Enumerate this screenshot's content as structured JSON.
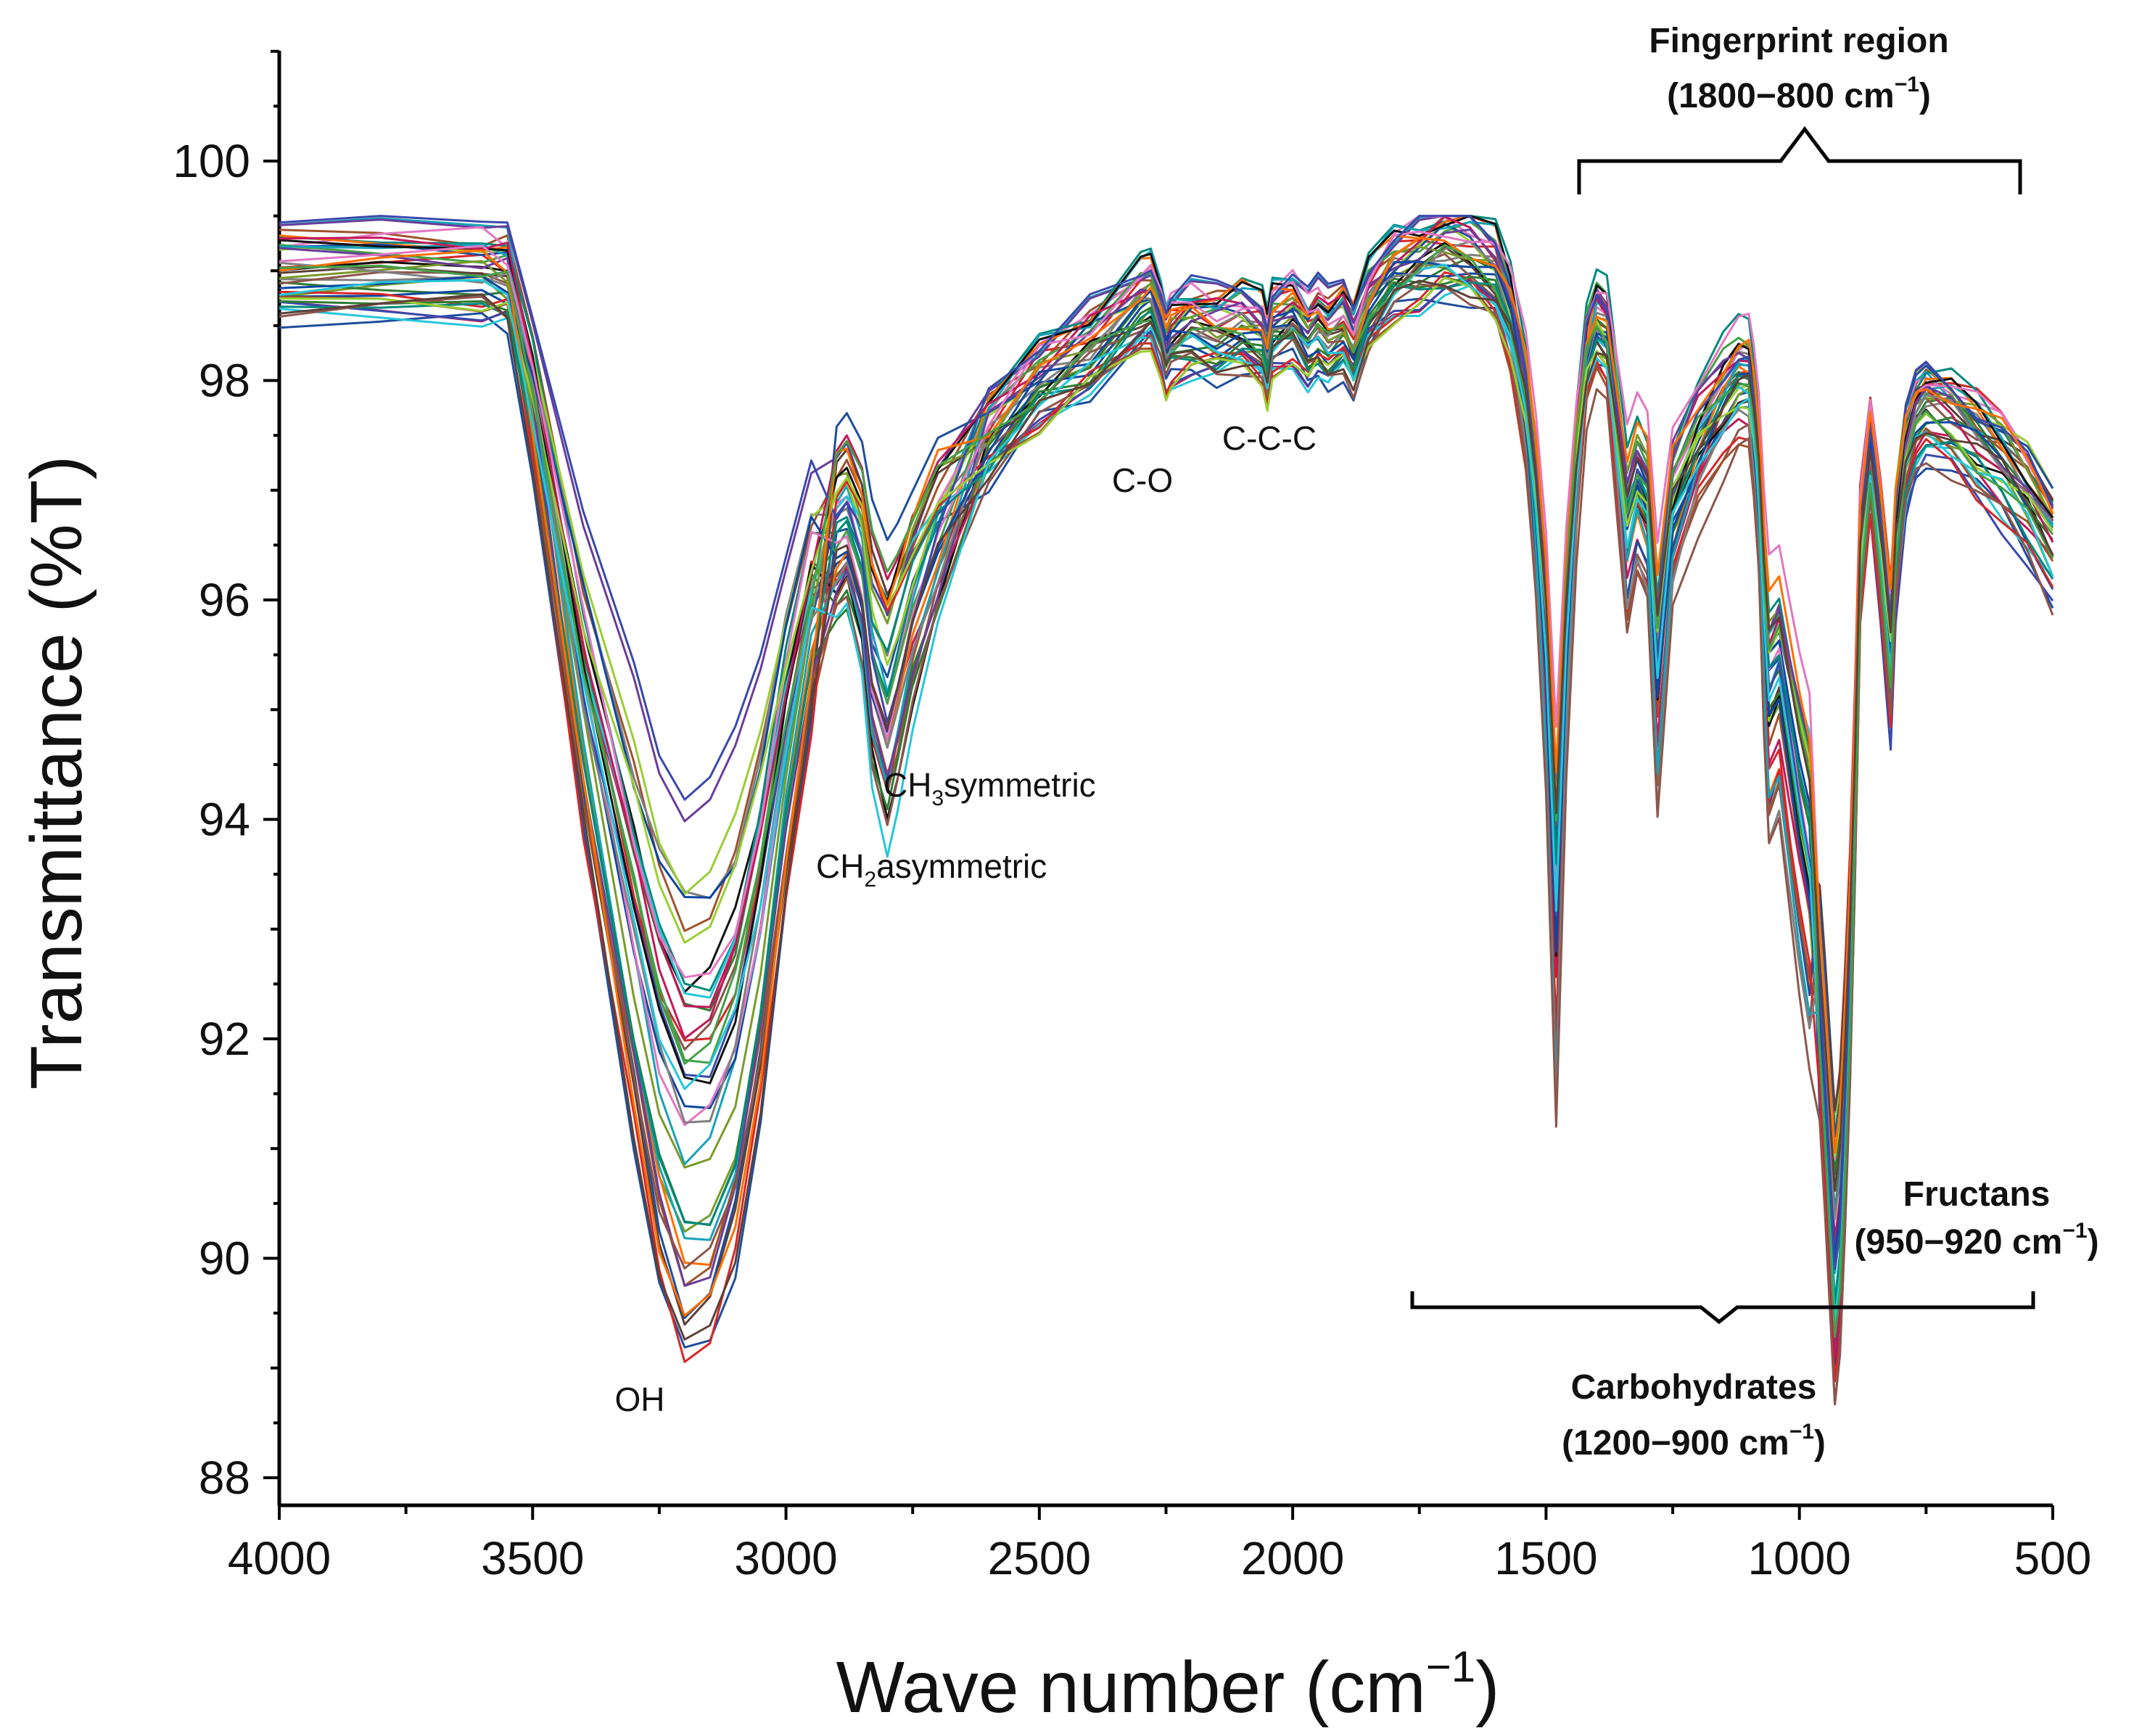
{
  "chart_data": {
    "type": "line",
    "title": "",
    "xlabel": "Wave number (cm",
    "xlabel_sup": "−1",
    "xlabel_end": ")",
    "ylabel": "Transmittance (%T)",
    "xlim": [
      4000,
      500
    ],
    "ylim": [
      88,
      101
    ],
    "x_ticks": [
      "4000",
      "3500",
      "3000",
      "2500",
      "2000",
      "1500",
      "1000",
      "500"
    ],
    "y_ticks": [
      "88",
      "90",
      "92",
      "94",
      "96",
      "98",
      "100"
    ],
    "base_spectrum": {
      "x": [
        4000,
        3800,
        3600,
        3550,
        3500,
        3400,
        3300,
        3250,
        3200,
        3150,
        3100,
        3050,
        3000,
        2950,
        2900,
        2880,
        2850,
        2830,
        2800,
        2780,
        2750,
        2700,
        2600,
        2500,
        2400,
        2300,
        2280,
        2260,
        2250,
        2240,
        2200,
        2150,
        2100,
        2060,
        2050,
        2040,
        2000,
        1970,
        1950,
        1930,
        1900,
        1880,
        1850,
        1800,
        1750,
        1700,
        1650,
        1600,
        1570,
        1540,
        1520,
        1500,
        1480,
        1460,
        1440,
        1420,
        1400,
        1380,
        1360,
        1340,
        1320,
        1300,
        1280,
        1250,
        1200,
        1150,
        1120,
        1100,
        1090,
        1080,
        1070,
        1060,
        1040,
        1020,
        1000,
        980,
        960,
        950,
        940,
        930,
        920,
        910,
        900,
        890,
        880,
        860,
        840,
        820,
        810,
        790,
        770,
        750,
        700,
        650,
        600,
        550,
        500
      ],
      "y": [
        99.0,
        99.02,
        99.0,
        98.95,
        97.8,
        95.0,
        92.7,
        91.6,
        91.0,
        91.1,
        91.7,
        92.9,
        94.5,
        95.8,
        96.8,
        96.9,
        96.5,
        95.8,
        95.4,
        95.7,
        96.2,
        96.8,
        97.5,
        98.0,
        98.3,
        98.7,
        98.75,
        98.5,
        98.3,
        98.4,
        98.5,
        98.45,
        98.5,
        98.4,
        98.2,
        98.5,
        98.6,
        98.4,
        98.5,
        98.4,
        98.5,
        98.3,
        98.7,
        99.0,
        99.1,
        99.2,
        99.15,
        99.0,
        98.6,
        97.8,
        96.8,
        95.4,
        93.0,
        95.6,
        97.2,
        98.2,
        98.5,
        98.4,
        97.5,
        96.6,
        97.0,
        96.8,
        95.2,
        96.8,
        97.4,
        97.8,
        98.0,
        98.0,
        97.6,
        97.0,
        95.8,
        95.0,
        95.2,
        94.6,
        94.0,
        93.5,
        92.5,
        91.8,
        91.0,
        90.2,
        90.6,
        91.6,
        92.8,
        94.5,
        96.5,
        97.4,
        96.6,
        95.6,
        96.6,
        97.4,
        97.7,
        97.8,
        97.7,
        97.5,
        97.3,
        97.0,
        96.6
      ]
    },
    "series_count": 40,
    "annotations": {
      "oh": "OH",
      "ch3_prefix": "CH",
      "ch3_sub": "3",
      "ch3_suffix": "symmetric",
      "ch2_prefix": "CH",
      "ch2_sub": "2",
      "ch2_suffix": "asymmetric",
      "co": "C-O",
      "ccc": "C-C-C",
      "fingerprint_line1": "Fingerprint region",
      "fingerprint_line2_a": "(1800−800 cm",
      "fingerprint_line2_sup": "−1",
      "fingerprint_line2_b": ")",
      "carbohydrates_line1": "Carbohydrates",
      "carbohydrates_line2_a": "(1200−900 cm",
      "carbohydrates_line2_sup": "−1",
      "carbohydrates_line2_b": ")",
      "fructans_line1": "Fructans",
      "fructans_line2_a": "(950−920 cm",
      "fructans_line2_sup": "−1",
      "fructans_line2_b": ")"
    },
    "palette": [
      "#1f4e9c",
      "#7a9a2a",
      "#a0522d",
      "#d62728",
      "#17a2b8",
      "#2e7d32",
      "#111111",
      "#c2185b",
      "#6a3d9a",
      "#808080",
      "#0d47a1",
      "#e377c2",
      "#00897b",
      "#8c564b",
      "#3949ab",
      "#9acd32",
      "#ff6f00",
      "#26c6da",
      "#43a047",
      "#5d4037"
    ]
  }
}
